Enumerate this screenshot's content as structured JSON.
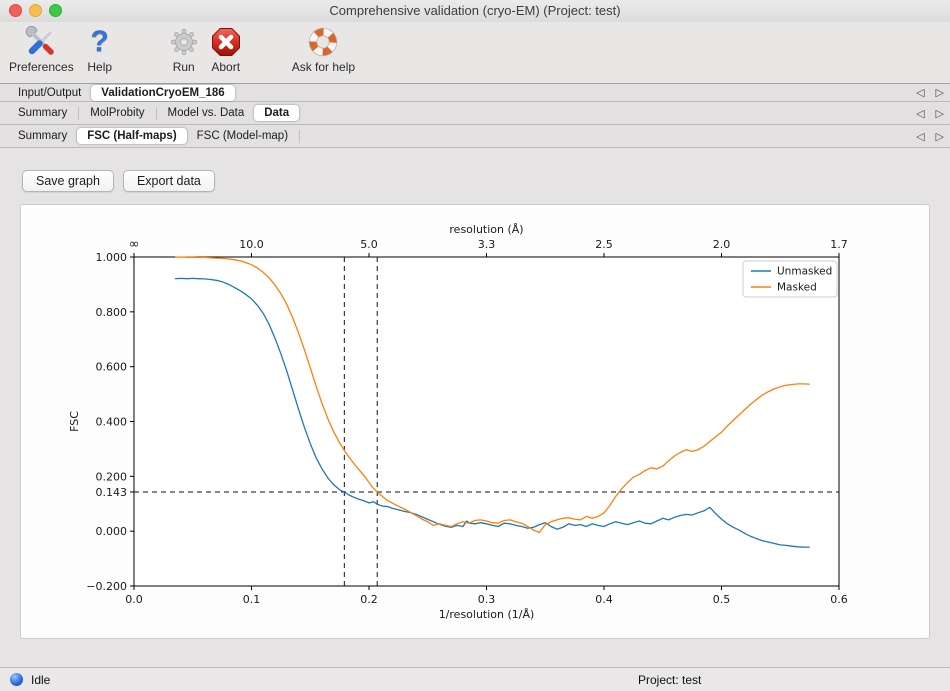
{
  "window": {
    "title": "Comprehensive validation (cryo-EM) (Project: test)"
  },
  "toolbar": {
    "items": [
      {
        "label": "Preferences",
        "icon": "tools-icon"
      },
      {
        "label": "Help",
        "icon": "question-icon"
      },
      {
        "label": "Run",
        "icon": "gear-icon"
      },
      {
        "label": "Abort",
        "icon": "abort-icon"
      },
      {
        "label": "Ask for help",
        "icon": "lifebuoy-icon"
      }
    ]
  },
  "tab_arrows": {
    "left": "◁",
    "right": "▷"
  },
  "tab_rows": [
    {
      "items": [
        {
          "label": "Input/Output",
          "active": false
        },
        {
          "label": "ValidationCryoEM_186",
          "active": true
        }
      ]
    },
    {
      "items": [
        {
          "label": "Summary",
          "active": false
        },
        {
          "label": "MolProbity",
          "active": false
        },
        {
          "label": "Model vs. Data",
          "active": false
        },
        {
          "label": "Data",
          "active": true
        }
      ]
    },
    {
      "items": [
        {
          "label": "Summary",
          "active": false
        },
        {
          "label": "FSC (Half-maps)",
          "active": true
        },
        {
          "label": "FSC (Model-map)",
          "active": false
        }
      ]
    }
  ],
  "actions": {
    "save_graph": "Save graph",
    "export_data": "Export data"
  },
  "status_bar": {
    "state": "Idle",
    "project": "Project: test"
  },
  "chart_data": {
    "type": "line",
    "top_xlabel": "resolution (Å)",
    "xlabel": "1/resolution (1/Å)",
    "ylabel": "FSC",
    "xlim": [
      0.0,
      0.6
    ],
    "ylim": [
      -0.2,
      1.0
    ],
    "x_ticks": [
      0.0,
      0.1,
      0.2,
      0.3,
      0.4,
      0.5,
      0.6
    ],
    "x_tick_labels": [
      "0.0",
      "0.1",
      "0.2",
      "0.3",
      "0.4",
      "0.5",
      "0.6"
    ],
    "y_ticks": [
      1.0,
      0.8,
      0.6,
      0.4,
      0.2,
      0.143,
      0.0,
      -0.2
    ],
    "y_tick_labels": [
      "1.000",
      "0.800",
      "0.600",
      "0.400",
      "0.200",
      "0.143",
      "0.000",
      "−0.200"
    ],
    "top_ticks": [
      {
        "label": "∞",
        "x": 0.0
      },
      {
        "label": "10.0",
        "x": 0.1
      },
      {
        "label": "5.0",
        "x": 0.2
      },
      {
        "label": "3.3",
        "x": 0.3
      },
      {
        "label": "2.5",
        "x": 0.4
      },
      {
        "label": "2.0",
        "x": 0.5
      },
      {
        "label": "1.7",
        "x": 0.6
      }
    ],
    "hlines": [
      {
        "y": 0.143,
        "style": "dashed"
      }
    ],
    "vlines": [
      {
        "x": 0.179,
        "style": "dashed"
      },
      {
        "x": 0.207,
        "style": "dashed"
      }
    ],
    "legend": {
      "position": "upper right",
      "entries": [
        "Unmasked",
        "Masked"
      ]
    },
    "grid": false,
    "series": [
      {
        "name": "Unmasked",
        "color": "#1f77b4",
        "points": [
          [
            0.035,
            0.921
          ],
          [
            0.04,
            0.922
          ],
          [
            0.045,
            0.921
          ],
          [
            0.05,
            0.922
          ],
          [
            0.055,
            0.921
          ],
          [
            0.06,
            0.92
          ],
          [
            0.065,
            0.918
          ],
          [
            0.07,
            0.915
          ],
          [
            0.075,
            0.91
          ],
          [
            0.08,
            0.901
          ],
          [
            0.085,
            0.89
          ],
          [
            0.09,
            0.878
          ],
          [
            0.095,
            0.864
          ],
          [
            0.1,
            0.847
          ],
          [
            0.105,
            0.824
          ],
          [
            0.11,
            0.794
          ],
          [
            0.115,
            0.754
          ],
          [
            0.12,
            0.704
          ],
          [
            0.125,
            0.647
          ],
          [
            0.13,
            0.584
          ],
          [
            0.135,
            0.515
          ],
          [
            0.14,
            0.445
          ],
          [
            0.145,
            0.379
          ],
          [
            0.15,
            0.319
          ],
          [
            0.155,
            0.268
          ],
          [
            0.16,
            0.227
          ],
          [
            0.165,
            0.194
          ],
          [
            0.17,
            0.169
          ],
          [
            0.175,
            0.151
          ],
          [
            0.179,
            0.143
          ],
          [
            0.183,
            0.132
          ],
          [
            0.187,
            0.124
          ],
          [
            0.191,
            0.117
          ],
          [
            0.195,
            0.112
          ],
          [
            0.2,
            0.103
          ],
          [
            0.204,
            0.107
          ],
          [
            0.208,
            0.096
          ],
          [
            0.212,
            0.091
          ],
          [
            0.216,
            0.09
          ],
          [
            0.22,
            0.083
          ],
          [
            0.225,
            0.078
          ],
          [
            0.23,
            0.072
          ],
          [
            0.235,
            0.068
          ],
          [
            0.24,
            0.062
          ],
          [
            0.245,
            0.052
          ],
          [
            0.25,
            0.043
          ],
          [
            0.255,
            0.034
          ],
          [
            0.26,
            0.025
          ],
          [
            0.265,
            0.018
          ],
          [
            0.27,
            0.014
          ],
          [
            0.275,
            0.021
          ],
          [
            0.28,
            0.017
          ],
          [
            0.283,
            0.037
          ],
          [
            0.286,
            0.029
          ],
          [
            0.29,
            0.027
          ],
          [
            0.295,
            0.031
          ],
          [
            0.3,
            0.027
          ],
          [
            0.305,
            0.021
          ],
          [
            0.31,
            0.017
          ],
          [
            0.315,
            0.029
          ],
          [
            0.32,
            0.027
          ],
          [
            0.325,
            0.021
          ],
          [
            0.33,
            0.017
          ],
          [
            0.335,
            0.011
          ],
          [
            0.34,
            0.014
          ],
          [
            0.345,
            0.024
          ],
          [
            0.35,
            0.031
          ],
          [
            0.355,
            0.017
          ],
          [
            0.36,
            0.007
          ],
          [
            0.365,
            0.014
          ],
          [
            0.37,
            0.027
          ],
          [
            0.375,
            0.021
          ],
          [
            0.38,
            0.024
          ],
          [
            0.385,
            0.017
          ],
          [
            0.39,
            0.027
          ],
          [
            0.395,
            0.021
          ],
          [
            0.4,
            0.017
          ],
          [
            0.405,
            0.027
          ],
          [
            0.41,
            0.034
          ],
          [
            0.415,
            0.029
          ],
          [
            0.42,
            0.024
          ],
          [
            0.425,
            0.031
          ],
          [
            0.43,
            0.037
          ],
          [
            0.435,
            0.029
          ],
          [
            0.44,
            0.027
          ],
          [
            0.445,
            0.037
          ],
          [
            0.45,
            0.047
          ],
          [
            0.455,
            0.041
          ],
          [
            0.46,
            0.051
          ],
          [
            0.465,
            0.057
          ],
          [
            0.47,
            0.061
          ],
          [
            0.475,
            0.059
          ],
          [
            0.48,
            0.067
          ],
          [
            0.485,
            0.074
          ],
          [
            0.49,
            0.087
          ],
          [
            0.495,
            0.064
          ],
          [
            0.5,
            0.044
          ],
          [
            0.505,
            0.027
          ],
          [
            0.51,
            0.014
          ],
          [
            0.515,
            0.004
          ],
          [
            0.52,
            -0.009
          ],
          [
            0.525,
            -0.019
          ],
          [
            0.53,
            -0.028
          ],
          [
            0.535,
            -0.035
          ],
          [
            0.54,
            -0.04
          ],
          [
            0.545,
            -0.045
          ],
          [
            0.55,
            -0.05
          ],
          [
            0.555,
            -0.052
          ],
          [
            0.56,
            -0.055
          ],
          [
            0.565,
            -0.057
          ],
          [
            0.57,
            -0.058
          ],
          [
            0.575,
            -0.058
          ]
        ]
      },
      {
        "name": "Masked",
        "color": "#ff7f0e",
        "points": [
          [
            0.035,
            0.999
          ],
          [
            0.04,
            1.0
          ],
          [
            0.045,
            0.999
          ],
          [
            0.05,
            0.999
          ],
          [
            0.055,
            0.998
          ],
          [
            0.06,
            0.998
          ],
          [
            0.065,
            0.997
          ],
          [
            0.07,
            0.996
          ],
          [
            0.075,
            0.995
          ],
          [
            0.08,
            0.993
          ],
          [
            0.085,
            0.99
          ],
          [
            0.09,
            0.986
          ],
          [
            0.095,
            0.98
          ],
          [
            0.1,
            0.972
          ],
          [
            0.105,
            0.96
          ],
          [
            0.11,
            0.944
          ],
          [
            0.115,
            0.924
          ],
          [
            0.12,
            0.898
          ],
          [
            0.125,
            0.866
          ],
          [
            0.13,
            0.827
          ],
          [
            0.135,
            0.779
          ],
          [
            0.14,
            0.724
          ],
          [
            0.145,
            0.662
          ],
          [
            0.15,
            0.596
          ],
          [
            0.155,
            0.529
          ],
          [
            0.16,
            0.466
          ],
          [
            0.165,
            0.41
          ],
          [
            0.17,
            0.362
          ],
          [
            0.175,
            0.322
          ],
          [
            0.18,
            0.288
          ],
          [
            0.185,
            0.258
          ],
          [
            0.19,
            0.231
          ],
          [
            0.195,
            0.207
          ],
          [
            0.2,
            0.178
          ],
          [
            0.203,
            0.16
          ],
          [
            0.207,
            0.143
          ],
          [
            0.211,
            0.128
          ],
          [
            0.215,
            0.114
          ],
          [
            0.22,
            0.102
          ],
          [
            0.225,
            0.091
          ],
          [
            0.23,
            0.081
          ],
          [
            0.235,
            0.069
          ],
          [
            0.24,
            0.057
          ],
          [
            0.245,
            0.044
          ],
          [
            0.25,
            0.034
          ],
          [
            0.255,
            0.021
          ],
          [
            0.26,
            0.027
          ],
          [
            0.265,
            0.021
          ],
          [
            0.27,
            0.017
          ],
          [
            0.275,
            0.027
          ],
          [
            0.28,
            0.034
          ],
          [
            0.285,
            0.029
          ],
          [
            0.29,
            0.039
          ],
          [
            0.295,
            0.041
          ],
          [
            0.3,
            0.037
          ],
          [
            0.305,
            0.031
          ],
          [
            0.31,
            0.029
          ],
          [
            0.315,
            0.039
          ],
          [
            0.32,
            0.041
          ],
          [
            0.325,
            0.034
          ],
          [
            0.33,
            0.029
          ],
          [
            0.335,
            0.017
          ],
          [
            0.34,
            0.004
          ],
          [
            0.345,
            -0.005
          ],
          [
            0.35,
            0.024
          ],
          [
            0.355,
            0.034
          ],
          [
            0.36,
            0.041
          ],
          [
            0.365,
            0.047
          ],
          [
            0.37,
            0.049
          ],
          [
            0.375,
            0.044
          ],
          [
            0.38,
            0.041
          ],
          [
            0.385,
            0.054
          ],
          [
            0.39,
            0.047
          ],
          [
            0.395,
            0.054
          ],
          [
            0.4,
            0.067
          ],
          [
            0.405,
            0.094
          ],
          [
            0.41,
            0.127
          ],
          [
            0.415,
            0.154
          ],
          [
            0.42,
            0.177
          ],
          [
            0.425,
            0.197
          ],
          [
            0.43,
            0.207
          ],
          [
            0.435,
            0.221
          ],
          [
            0.44,
            0.231
          ],
          [
            0.445,
            0.227
          ],
          [
            0.45,
            0.237
          ],
          [
            0.455,
            0.257
          ],
          [
            0.46,
            0.274
          ],
          [
            0.465,
            0.287
          ],
          [
            0.47,
            0.297
          ],
          [
            0.475,
            0.291
          ],
          [
            0.48,
            0.297
          ],
          [
            0.485,
            0.309
          ],
          [
            0.49,
            0.327
          ],
          [
            0.495,
            0.344
          ],
          [
            0.5,
            0.361
          ],
          [
            0.505,
            0.384
          ],
          [
            0.51,
            0.404
          ],
          [
            0.515,
            0.424
          ],
          [
            0.52,
            0.444
          ],
          [
            0.525,
            0.464
          ],
          [
            0.53,
            0.481
          ],
          [
            0.535,
            0.497
          ],
          [
            0.54,
            0.509
          ],
          [
            0.545,
            0.519
          ],
          [
            0.55,
            0.527
          ],
          [
            0.555,
            0.532
          ],
          [
            0.56,
            0.535
          ],
          [
            0.565,
            0.537
          ],
          [
            0.57,
            0.537
          ],
          [
            0.575,
            0.536
          ]
        ]
      }
    ]
  }
}
